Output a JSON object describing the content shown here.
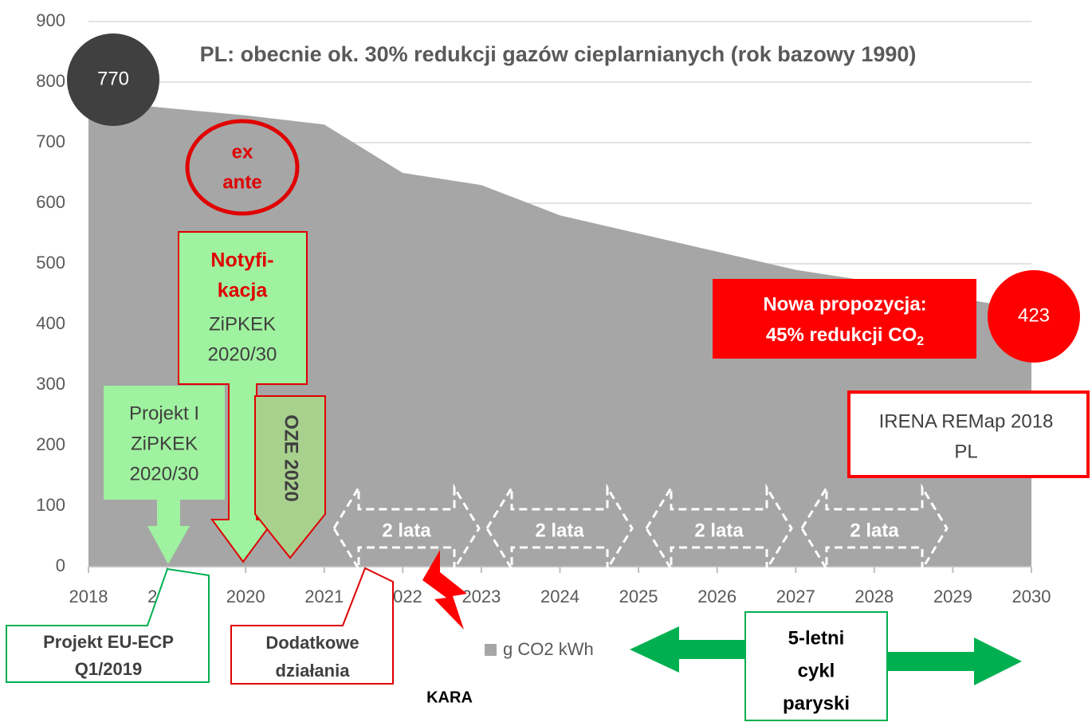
{
  "chart_data": {
    "type": "area",
    "title": "PL: obecnie ok. 30% redukcji gazów cieplarnianych (rok bazowy 1990)",
    "x": [
      2018,
      2019,
      2020,
      2021,
      2022,
      2023,
      2024,
      2025,
      2026,
      2027,
      2028,
      2029,
      2030
    ],
    "series": [
      {
        "name": "g CO2 kWh",
        "color": "#a6a6a6",
        "values": [
          770,
          757,
          745,
          730,
          650,
          630,
          580,
          550,
          520,
          490,
          470,
          445,
          423
        ]
      }
    ],
    "xlim": [
      2018,
      2030
    ],
    "xticks": [
      2018,
      2019,
      2020,
      2021,
      2022,
      2023,
      2024,
      2025,
      2026,
      2027,
      2028,
      2029,
      2030
    ],
    "ylim": [
      0,
      900
    ],
    "yticks": [
      0,
      100,
      200,
      300,
      400,
      500,
      600,
      700,
      800,
      900
    ],
    "grid": true,
    "legend": "bottom",
    "annotations": {
      "ex_ante": [
        "ex",
        "ante"
      ],
      "notification": {
        "highlight": [
          "Notyfi-",
          "kacja"
        ],
        "lines": [
          "ZiPKEK",
          "2020/30"
        ]
      },
      "draft": [
        "Projekt I",
        "ZiPKEK",
        "2020/30"
      ],
      "oze": "OZE 2020",
      "two_years": [
        "2 lata",
        "2 lata",
        "2 lata",
        "2 lata"
      ],
      "proposal": {
        "lines": [
          "Nowa propozycja:",
          "45% redukcji CO"
        ],
        "subscript": "2"
      },
      "irena": [
        "IRENA REMap 2018",
        "PL"
      ],
      "eu_ecp": [
        "Projekt EU-ECP",
        "Q1/2019"
      ],
      "additional": [
        "Dodatkowe",
        "działania"
      ],
      "penalty": "KARA",
      "paris_cycle": [
        "5-letni",
        "cykl",
        "paryski"
      ]
    }
  }
}
